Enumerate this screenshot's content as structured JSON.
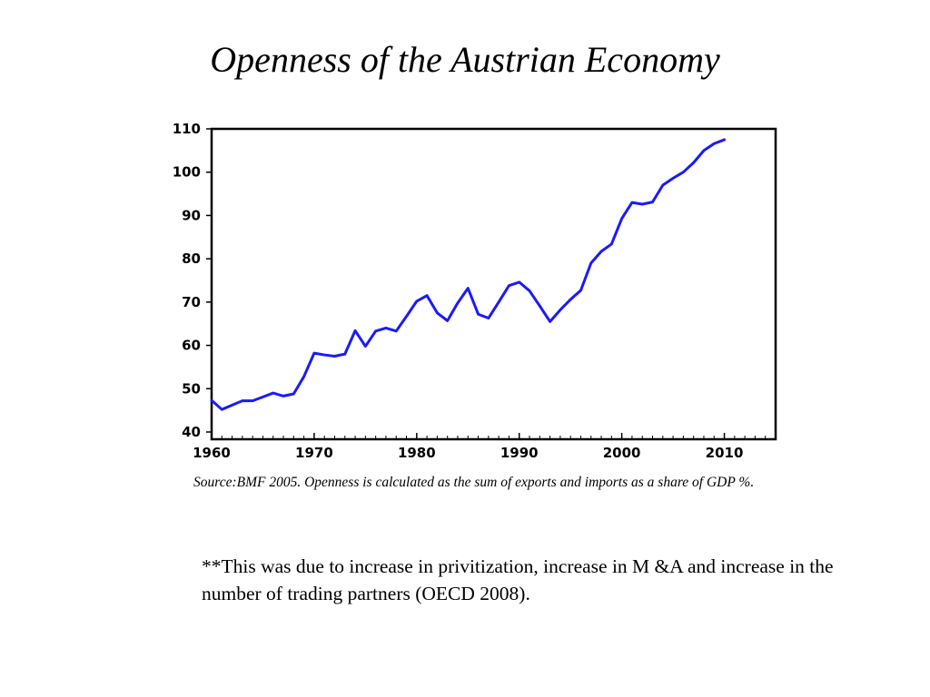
{
  "slide": {
    "title": "Openness of the Austrian Economy",
    "source_note": "Source:BMF 2005. Openness is calculated as the sum of exports and imports as a share of GDP %.",
    "footnote": "**This was due to increase in privitization, increase in M &A and increase in the number of trading partners (OECD 2008)."
  },
  "chart_data": {
    "type": "line",
    "title": "",
    "xlabel": "",
    "ylabel": "",
    "xlim": [
      1960,
      2015
    ],
    "ylim": [
      40,
      110
    ],
    "x_ticks": [
      1960,
      1970,
      1980,
      1990,
      2000,
      2010
    ],
    "y_ticks": [
      40,
      50,
      60,
      70,
      80,
      90,
      100,
      110
    ],
    "grid": false,
    "line_color": "#1a1aff",
    "series": [
      {
        "name": "",
        "x": [
          1960,
          1961,
          1962,
          1963,
          1964,
          1965,
          1966,
          1967,
          1968,
          1969,
          1970,
          1971,
          1972,
          1973,
          1974,
          1975,
          1976,
          1977,
          1978,
          1979,
          1980,
          1981,
          1982,
          1983,
          1984,
          1985,
          1986,
          1987,
          1988,
          1989,
          1990,
          1991,
          1992,
          1993,
          1994,
          1995,
          1996,
          1997,
          1998,
          1999,
          2000,
          2001,
          2002,
          2003,
          2004,
          2005,
          2006,
          2007,
          2008,
          2009,
          2010
        ],
        "values": [
          47.3,
          45.2,
          46.2,
          47.2,
          47.2,
          48.1,
          49.0,
          48.3,
          48.8,
          52.8,
          58.2,
          57.8,
          57.5,
          58.0,
          63.4,
          59.8,
          63.3,
          64.0,
          63.3,
          66.7,
          70.2,
          71.5,
          67.5,
          65.7,
          69.8,
          73.2,
          67.2,
          66.3,
          70.0,
          73.8,
          74.6,
          72.6,
          69.1,
          65.5,
          68.2,
          70.6,
          72.7,
          79.0,
          81.7,
          83.4,
          89.3,
          93.0,
          92.6,
          93.1,
          97.0,
          98.6,
          100.0,
          102.2,
          105.0,
          106.6,
          107.5
        ]
      }
    ]
  }
}
